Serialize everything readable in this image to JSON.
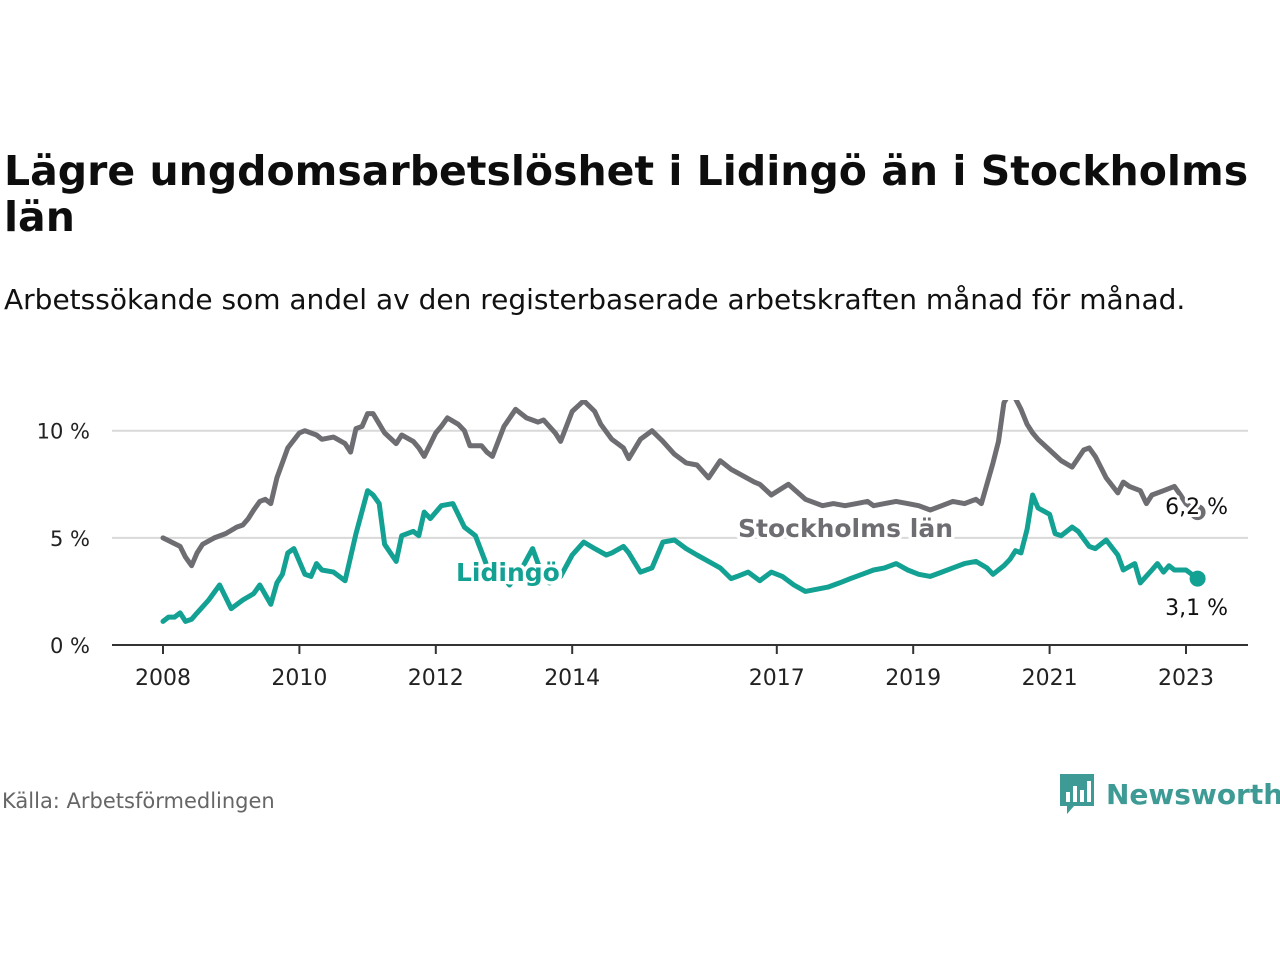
{
  "title": "Lägre ungdomsarbetslöshet i Lidingö än i Stockholms län",
  "subtitle": "Arbetssökande som andel av den registerbaserade arbetskraften månad för månad.",
  "source": "Källa: Arbetsförmedlingen",
  "brand": "Newsworthy",
  "colors": {
    "stockholm": "#6e6d72",
    "lidingo": "#12a193",
    "grid": "#d9d9d9",
    "axis": "#333333",
    "brand": "#3d9a94"
  },
  "chart_data": {
    "type": "line",
    "xlabel": "",
    "ylabel": "",
    "ylim": [
      0,
      10.5
    ],
    "xlim": [
      2007.75,
      2024.0
    ],
    "yticks": [
      0,
      5,
      10
    ],
    "ytick_labels": [
      "0 %",
      "5 %",
      "10 %"
    ],
    "xticks": [
      2008,
      2010,
      2012,
      2014,
      2017,
      2019,
      2021,
      2023
    ],
    "xtick_labels": [
      "2008",
      "2010",
      "2012",
      "2014",
      "2017",
      "2019",
      "2021",
      "2023"
    ],
    "grid": true,
    "series": [
      {
        "name": "Stockholms län",
        "label": "Stockholms län",
        "end_label": "6,2 %",
        "end_value": 6.2,
        "color": "#6e6d72",
        "x": [
          2008.0,
          2008.25,
          2008.33,
          2008.42,
          2008.5,
          2008.58,
          2008.75,
          2008.92,
          2009.08,
          2009.17,
          2009.25,
          2009.33,
          2009.42,
          2009.5,
          2009.58,
          2009.67,
          2009.83,
          2010.0,
          2010.08,
          2010.25,
          2010.33,
          2010.5,
          2010.67,
          2010.75,
          2010.83,
          2010.92,
          2011.0,
          2011.08,
          2011.25,
          2011.42,
          2011.5,
          2011.67,
          2011.75,
          2011.83,
          2012.0,
          2012.08,
          2012.17,
          2012.33,
          2012.42,
          2012.5,
          2012.67,
          2012.75,
          2012.83,
          2013.0,
          2013.17,
          2013.33,
          2013.5,
          2013.58,
          2013.75,
          2013.83,
          2014.0,
          2014.17,
          2014.33,
          2014.42,
          2014.58,
          2014.75,
          2014.83,
          2015.0,
          2015.17,
          2015.33,
          2015.5,
          2015.67,
          2015.83,
          2016.0,
          2016.17,
          2016.33,
          2016.5,
          2016.67,
          2016.75,
          2016.92,
          2017.17,
          2017.42,
          2017.67,
          2017.83,
          2018.0,
          2018.17,
          2018.33,
          2018.42,
          2018.58,
          2018.75,
          2018.92,
          2019.08,
          2019.25,
          2019.42,
          2019.58,
          2019.75,
          2019.92,
          2020.0,
          2020.17,
          2020.25,
          2020.33,
          2020.42,
          2020.5,
          2020.58,
          2020.67,
          2020.75,
          2020.83,
          2021.0,
          2021.17,
          2021.33,
          2021.5,
          2021.58,
          2021.67,
          2021.83,
          2022.0,
          2022.08,
          2022.17,
          2022.33,
          2022.42,
          2022.5,
          2022.67,
          2022.83,
          2022.92,
          2023.0,
          2023.17
        ],
        "y": [
          5.0,
          4.6,
          4.1,
          3.7,
          4.3,
          4.7,
          5.0,
          5.2,
          5.5,
          5.6,
          5.9,
          6.3,
          6.7,
          6.8,
          6.6,
          7.8,
          9.2,
          9.9,
          10.0,
          9.8,
          9.6,
          9.7,
          9.4,
          9.0,
          10.1,
          10.2,
          10.8,
          10.8,
          9.9,
          9.4,
          9.8,
          9.5,
          9.2,
          8.8,
          9.9,
          10.2,
          10.6,
          10.3,
          10.0,
          9.3,
          9.3,
          9.0,
          8.8,
          10.2,
          11.0,
          10.6,
          10.4,
          10.5,
          9.9,
          9.5,
          10.9,
          11.4,
          10.9,
          10.3,
          9.6,
          9.2,
          8.7,
          9.6,
          10.0,
          9.5,
          8.9,
          8.5,
          8.4,
          7.8,
          8.6,
          8.2,
          7.9,
          7.6,
          7.5,
          7.0,
          7.5,
          6.8,
          6.5,
          6.6,
          6.5,
          6.6,
          6.7,
          6.5,
          6.6,
          6.7,
          6.6,
          6.5,
          6.3,
          6.5,
          6.7,
          6.6,
          6.8,
          6.6,
          8.5,
          9.5,
          11.3,
          11.8,
          11.5,
          11.0,
          10.3,
          9.9,
          9.6,
          9.1,
          8.6,
          8.3,
          9.1,
          9.2,
          8.8,
          7.8,
          7.1,
          7.6,
          7.4,
          7.2,
          6.6,
          7.0,
          7.2,
          7.4,
          7.0,
          6.6,
          6.2
        ]
      },
      {
        "name": "Lidingö",
        "label": "Lidingö",
        "end_label": "3,1 %",
        "end_value": 3.1,
        "color": "#12a193",
        "x": [
          2008.0,
          2008.08,
          2008.17,
          2008.25,
          2008.33,
          2008.42,
          2008.5,
          2008.67,
          2008.83,
          2009.0,
          2009.17,
          2009.33,
          2009.42,
          2009.58,
          2009.67,
          2009.75,
          2009.83,
          2009.92,
          2010.08,
          2010.17,
          2010.25,
          2010.33,
          2010.5,
          2010.67,
          2010.83,
          2011.0,
          2011.08,
          2011.17,
          2011.25,
          2011.42,
          2011.5,
          2011.67,
          2011.75,
          2011.83,
          2011.92,
          2012.08,
          2012.25,
          2012.42,
          2012.58,
          2012.75,
          2012.92,
          2013.08,
          2013.25,
          2013.42,
          2013.58,
          2013.67,
          2013.83,
          2014.0,
          2014.17,
          2014.33,
          2014.5,
          2014.58,
          2014.75,
          2014.83,
          2015.0,
          2015.17,
          2015.33,
          2015.5,
          2015.67,
          2015.83,
          2016.0,
          2016.17,
          2016.33,
          2016.42,
          2016.58,
          2016.75,
          2016.92,
          2017.08,
          2017.25,
          2017.42,
          2017.58,
          2017.75,
          2017.92,
          2018.08,
          2018.25,
          2018.42,
          2018.58,
          2018.75,
          2018.92,
          2019.08,
          2019.25,
          2019.42,
          2019.58,
          2019.75,
          2019.92,
          2020.08,
          2020.17,
          2020.33,
          2020.42,
          2020.5,
          2020.58,
          2020.67,
          2020.75,
          2020.83,
          2021.0,
          2021.08,
          2021.17,
          2021.33,
          2021.42,
          2021.58,
          2021.67,
          2021.83,
          2022.0,
          2022.08,
          2022.25,
          2022.33,
          2022.5,
          2022.58,
          2022.67,
          2022.75,
          2022.83,
          2023.0,
          2023.17
        ],
        "y": [
          1.1,
          1.3,
          1.3,
          1.5,
          1.1,
          1.2,
          1.5,
          2.1,
          2.8,
          1.7,
          2.1,
          2.4,
          2.8,
          1.9,
          2.9,
          3.3,
          4.3,
          4.5,
          3.3,
          3.2,
          3.8,
          3.5,
          3.4,
          3.0,
          5.2,
          7.2,
          7.0,
          6.6,
          4.7,
          3.9,
          5.1,
          5.3,
          5.1,
          6.2,
          5.9,
          6.5,
          6.6,
          5.5,
          5.1,
          3.7,
          3.4,
          2.8,
          3.5,
          4.5,
          3.1,
          2.9,
          3.2,
          4.2,
          4.8,
          4.5,
          4.2,
          4.3,
          4.6,
          4.3,
          3.4,
          3.6,
          4.8,
          4.9,
          4.5,
          4.2,
          3.9,
          3.6,
          3.1,
          3.2,
          3.4,
          3.0,
          3.4,
          3.2,
          2.8,
          2.5,
          2.6,
          2.7,
          2.9,
          3.1,
          3.3,
          3.5,
          3.6,
          3.8,
          3.5,
          3.3,
          3.2,
          3.4,
          3.6,
          3.8,
          3.9,
          3.6,
          3.3,
          3.7,
          4.0,
          4.4,
          4.3,
          5.4,
          7.0,
          6.4,
          6.1,
          5.2,
          5.1,
          5.5,
          5.3,
          4.6,
          4.5,
          4.9,
          4.2,
          3.5,
          3.8,
          2.9,
          3.5,
          3.8,
          3.4,
          3.7,
          3.5,
          3.5,
          3.1
        ]
      }
    ]
  }
}
